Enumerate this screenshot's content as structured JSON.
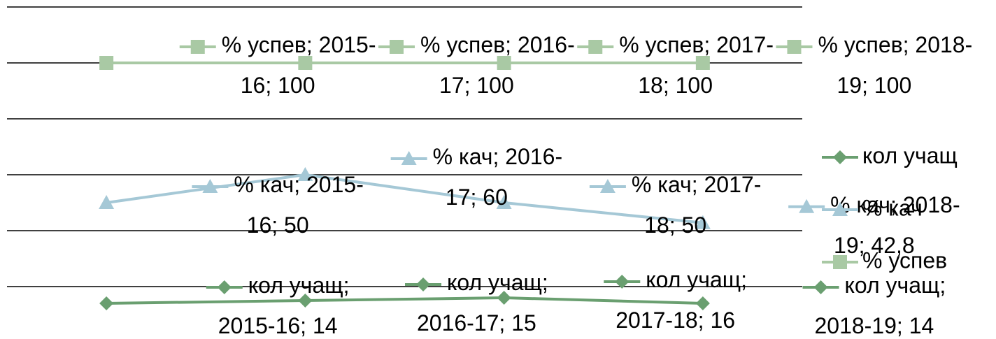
{
  "chart_data": {
    "type": "line",
    "categories": [
      "2015-16",
      "2016-17",
      "2017-18",
      "2018-19"
    ],
    "series": [
      {
        "name": "% успев",
        "color": "#a9c9a4",
        "marker": "square",
        "values": [
          100,
          100,
          100,
          100
        ],
        "value_labels": [
          "% успев; 2015-16; 100",
          "% успев; 2016-17; 100",
          "% успев; 2017-18; 100",
          "% успев; 2018-19; 100"
        ]
      },
      {
        "name": "% кач",
        "color": "#a5c8d6",
        "marker": "triangle",
        "values": [
          50,
          60,
          50,
          42.8
        ],
        "value_labels": [
          "% кач; 2015-16; 50",
          "% кач; 2016-17; 60",
          "% кач; 2017-18; 50",
          "% кач; 2018-19; 42,8"
        ]
      },
      {
        "name": "кол учащ",
        "color": "#6a9f70",
        "marker": "diamond",
        "values": [
          14,
          15,
          16,
          14
        ],
        "value_labels": [
          "кол учащ; 2015-16; 14",
          "кол учащ; 2016-17; 15",
          "кол учащ; 2017-18; 16",
          "кол учащ; 2018-19; 14"
        ]
      }
    ],
    "ylim": [
      0,
      120
    ],
    "yticks": [
      20,
      40,
      60,
      80,
      100,
      120
    ],
    "grid": true,
    "legend": "right"
  }
}
